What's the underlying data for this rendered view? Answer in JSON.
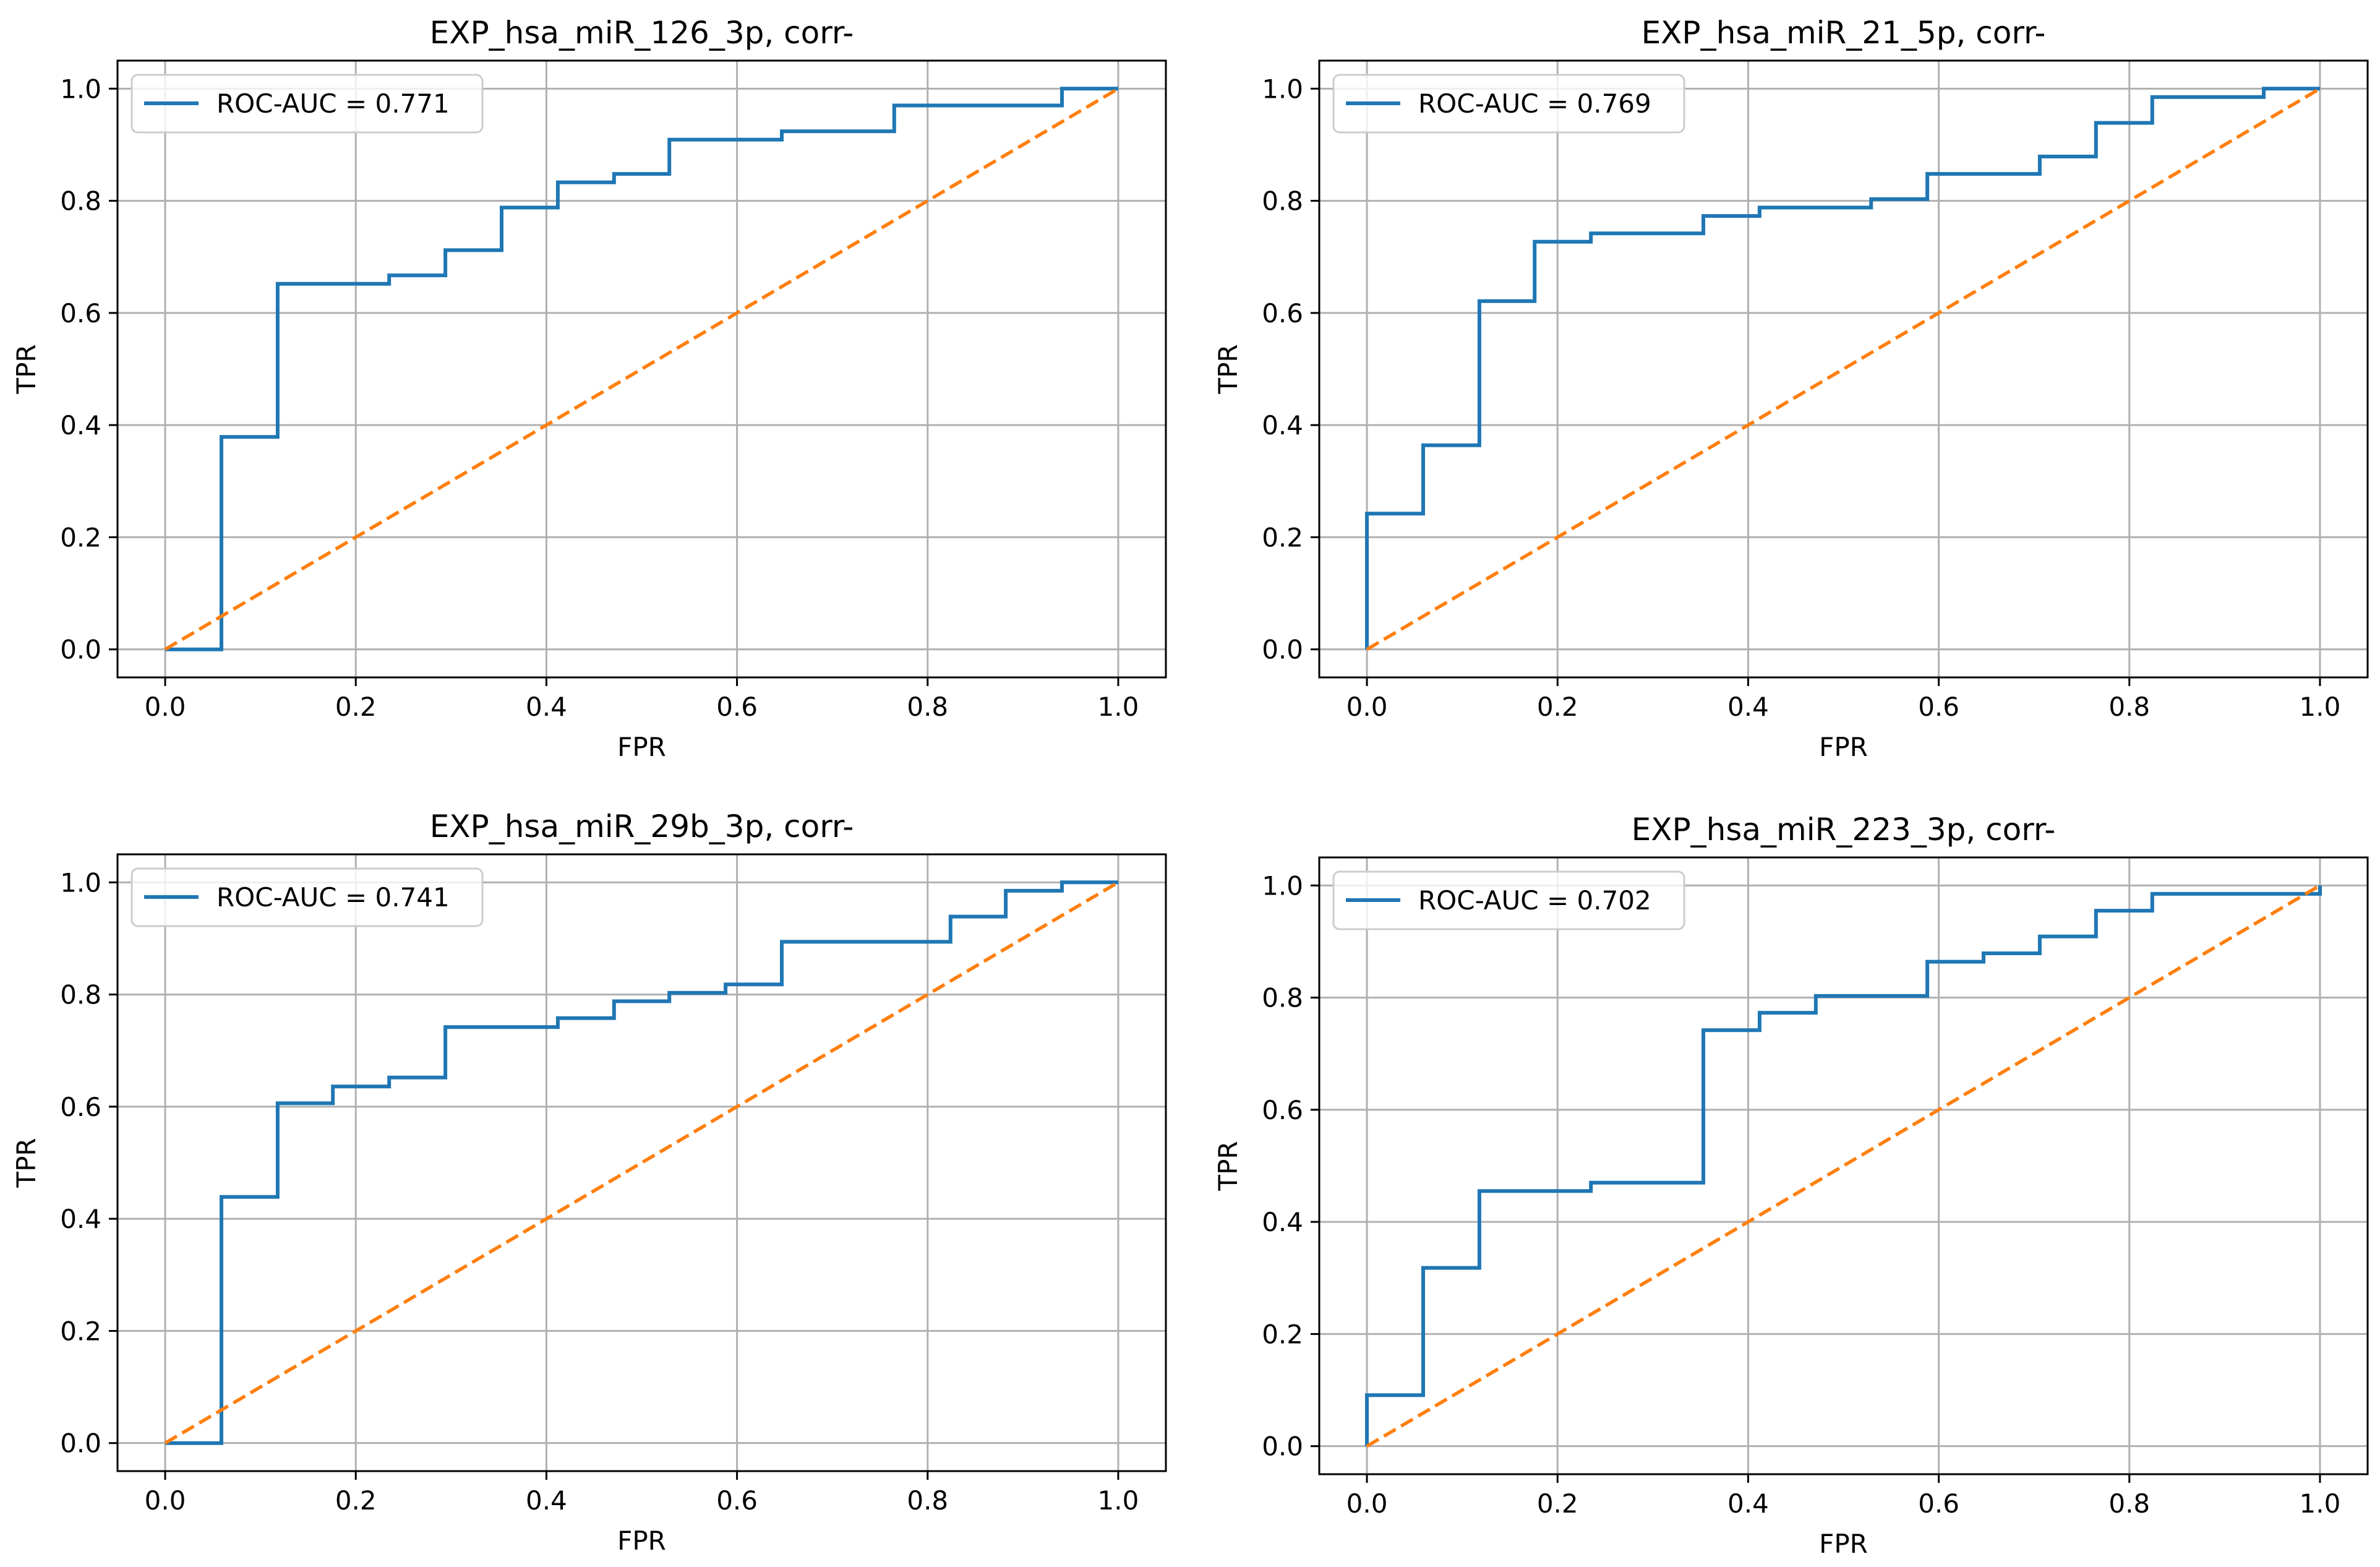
{
  "chart_data": [
    {
      "type": "line",
      "title": "EXP_hsa_miR_126_3p, corr-",
      "xlabel": "FPR",
      "ylabel": "TPR",
      "xlim": [
        -0.05,
        1.05
      ],
      "ylim": [
        -0.05,
        1.05
      ],
      "xticks": [
        "0.0",
        "0.2",
        "0.4",
        "0.6",
        "0.8",
        "1.0"
      ],
      "yticks": [
        "0.0",
        "0.2",
        "0.4",
        "0.6",
        "0.8",
        "1.0"
      ],
      "grid": true,
      "legend_position": "top-left",
      "series": [
        {
          "name": "ROC-AUC = 0.771",
          "style": "step",
          "color": "#1f77b4",
          "x": [
            0.0,
            0.059,
            0.059,
            0.118,
            0.118,
            0.235,
            0.235,
            0.294,
            0.294,
            0.353,
            0.353,
            0.412,
            0.412,
            0.471,
            0.471,
            0.529,
            0.529,
            0.647,
            0.647,
            0.765,
            0.765,
            0.941,
            0.941,
            1.0
          ],
          "y": [
            0.0,
            0.0,
            0.379,
            0.379,
            0.652,
            0.652,
            0.667,
            0.667,
            0.712,
            0.712,
            0.788,
            0.788,
            0.833,
            0.833,
            0.848,
            0.848,
            0.909,
            0.909,
            0.924,
            0.924,
            0.97,
            0.97,
            1.0,
            1.0
          ]
        },
        {
          "style": "dashed",
          "color": "#ff7f0e",
          "x": [
            0.0,
            1.0
          ],
          "y": [
            0.0,
            1.0
          ]
        }
      ]
    },
    {
      "type": "line",
      "title": "EXP_hsa_miR_21_5p, corr-",
      "xlabel": "FPR",
      "ylabel": "TPR",
      "xlim": [
        -0.05,
        1.05
      ],
      "ylim": [
        -0.05,
        1.05
      ],
      "xticks": [
        "0.0",
        "0.2",
        "0.4",
        "0.6",
        "0.8",
        "1.0"
      ],
      "yticks": [
        "0.0",
        "0.2",
        "0.4",
        "0.6",
        "0.8",
        "1.0"
      ],
      "grid": true,
      "legend_position": "top-left",
      "series": [
        {
          "name": "ROC-AUC = 0.769",
          "style": "step",
          "color": "#1f77b4",
          "x": [
            0.0,
            0.0,
            0.059,
            0.059,
            0.118,
            0.118,
            0.176,
            0.176,
            0.235,
            0.235,
            0.353,
            0.353,
            0.412,
            0.412,
            0.529,
            0.529,
            0.588,
            0.588,
            0.706,
            0.706,
            0.765,
            0.765,
            0.824,
            0.824,
            0.941,
            0.941,
            1.0
          ],
          "y": [
            0.0,
            0.242,
            0.242,
            0.364,
            0.364,
            0.621,
            0.621,
            0.727,
            0.727,
            0.742,
            0.742,
            0.773,
            0.773,
            0.788,
            0.788,
            0.803,
            0.803,
            0.848,
            0.848,
            0.879,
            0.879,
            0.939,
            0.939,
            0.985,
            0.985,
            1.0,
            1.0
          ]
        },
        {
          "style": "dashed",
          "color": "#ff7f0e",
          "x": [
            0.0,
            1.0
          ],
          "y": [
            0.0,
            1.0
          ]
        }
      ]
    },
    {
      "type": "line",
      "title": "EXP_hsa_miR_29b_3p, corr-",
      "xlabel": "FPR",
      "ylabel": "TPR",
      "xlim": [
        -0.05,
        1.05
      ],
      "ylim": [
        -0.05,
        1.05
      ],
      "xticks": [
        "0.0",
        "0.2",
        "0.4",
        "0.6",
        "0.8",
        "1.0"
      ],
      "yticks": [
        "0.0",
        "0.2",
        "0.4",
        "0.6",
        "0.8",
        "1.0"
      ],
      "grid": true,
      "legend_position": "top-left",
      "series": [
        {
          "name": "ROC-AUC = 0.741",
          "style": "step",
          "color": "#1f77b4",
          "x": [
            0.0,
            0.059,
            0.059,
            0.118,
            0.118,
            0.176,
            0.176,
            0.235,
            0.235,
            0.294,
            0.294,
            0.412,
            0.412,
            0.471,
            0.471,
            0.529,
            0.529,
            0.588,
            0.588,
            0.647,
            0.647,
            0.824,
            0.824,
            0.882,
            0.882,
            0.941,
            0.941,
            1.0
          ],
          "y": [
            0.0,
            0.0,
            0.439,
            0.439,
            0.606,
            0.606,
            0.636,
            0.636,
            0.652,
            0.652,
            0.742,
            0.742,
            0.758,
            0.758,
            0.788,
            0.788,
            0.803,
            0.803,
            0.818,
            0.818,
            0.894,
            0.894,
            0.939,
            0.939,
            0.985,
            0.985,
            1.0,
            1.0
          ]
        },
        {
          "style": "dashed",
          "color": "#ff7f0e",
          "x": [
            0.0,
            1.0
          ],
          "y": [
            0.0,
            1.0
          ]
        }
      ]
    },
    {
      "type": "line",
      "title": "EXP_hsa_miR_223_3p, corr-",
      "xlabel": "FPR",
      "ylabel": "TPR",
      "xlim": [
        -0.05,
        1.05
      ],
      "ylim": [
        -0.05,
        1.05
      ],
      "xticks": [
        "0.0",
        "0.2",
        "0.4",
        "0.6",
        "0.8",
        "1.0"
      ],
      "yticks": [
        "0.0",
        "0.2",
        "0.4",
        "0.6",
        "0.8",
        "1.0"
      ],
      "grid": true,
      "legend_position": "top-left",
      "series": [
        {
          "name": "ROC-AUC = 0.702",
          "style": "step",
          "color": "#1f77b4",
          "x": [
            0.0,
            0.0,
            0.059,
            0.059,
            0.118,
            0.118,
            0.235,
            0.235,
            0.353,
            0.353,
            0.412,
            0.412,
            0.471,
            0.471,
            0.588,
            0.588,
            0.647,
            0.647,
            0.706,
            0.706,
            0.765,
            0.765,
            0.824,
            0.824,
            1.0,
            1.0
          ],
          "y": [
            0.0,
            0.091,
            0.091,
            0.318,
            0.318,
            0.455,
            0.455,
            0.47,
            0.47,
            0.742,
            0.742,
            0.773,
            0.773,
            0.803,
            0.803,
            0.864,
            0.864,
            0.879,
            0.879,
            0.909,
            0.909,
            0.955,
            0.955,
            0.985,
            0.985,
            1.0
          ]
        },
        {
          "style": "dashed",
          "color": "#ff7f0e",
          "x": [
            0.0,
            1.0
          ],
          "y": [
            0.0,
            1.0
          ]
        }
      ]
    }
  ]
}
